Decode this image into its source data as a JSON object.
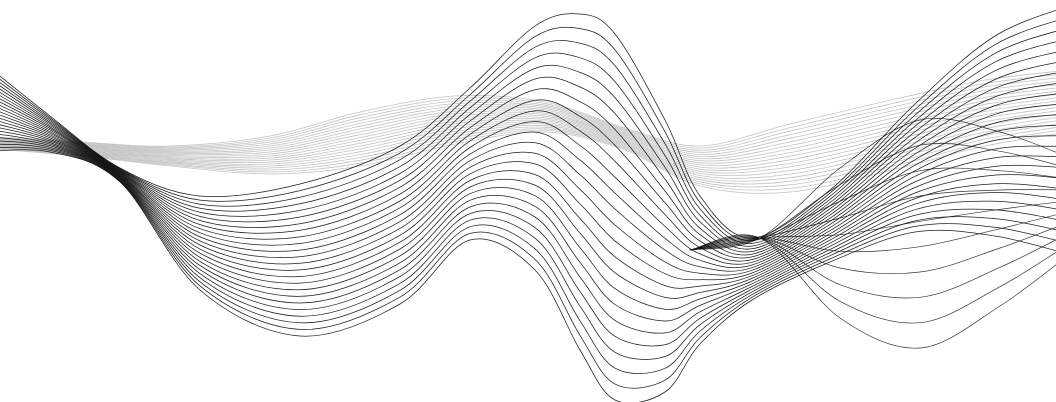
{
  "artwork": {
    "subject": "abstract-wave-line-art",
    "background_color": "#ffffff",
    "dark_line_color": "#111111",
    "light_line_color": "#b9b9b9",
    "dark_line_count": 24,
    "light_line_count": 20
  }
}
